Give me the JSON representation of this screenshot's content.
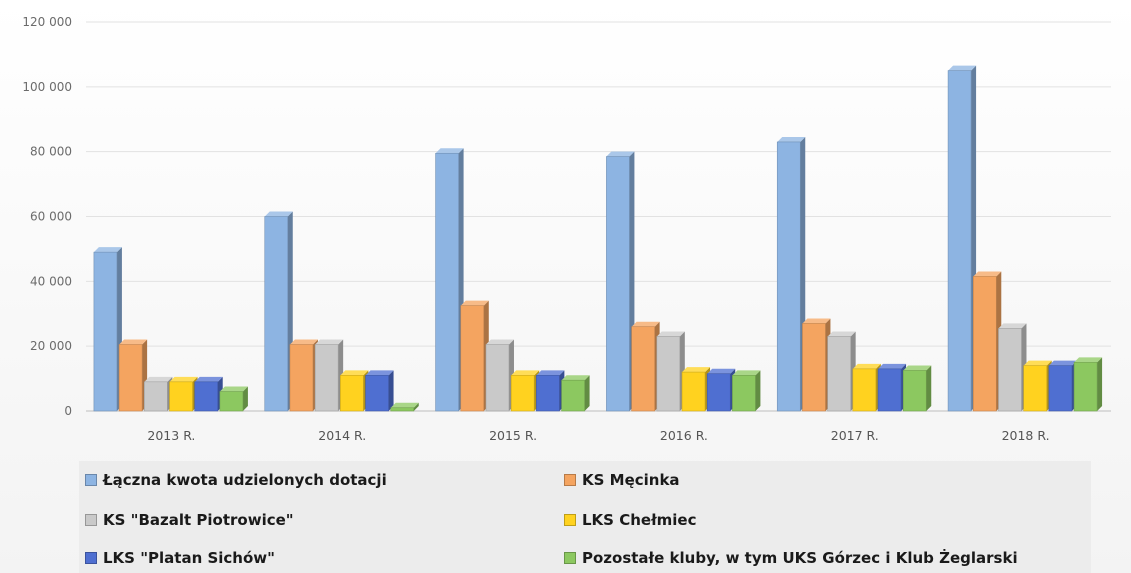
{
  "chart_data": {
    "type": "bar",
    "categories": [
      "2013 R.",
      "2014 R.",
      "2015 R.",
      "2016 R.",
      "2017 R.",
      "2018 R."
    ],
    "ylim": [
      0,
      120000
    ],
    "y_ticks": [
      "0",
      "20 000",
      "40 000",
      "60 000",
      "80 000",
      "100 000",
      "120 000"
    ],
    "series": [
      {
        "name": "Łączna kwota udzielonych dotacji",
        "color": "#8db4e2",
        "values": [
          49000,
          60000,
          79500,
          78500,
          83000,
          105000
        ]
      },
      {
        "name": "KS Męcinka",
        "color": "#f4a460",
        "values": [
          20500,
          20500,
          32500,
          26000,
          27000,
          41500
        ]
      },
      {
        "name": "KS \"Bazalt Piotrowice\"",
        "color": "#c9c9c9",
        "values": [
          9000,
          20500,
          20500,
          23000,
          23000,
          25500
        ]
      },
      {
        "name": "LKS Chełmiec",
        "color": "#ffd21f",
        "values": [
          9000,
          11000,
          11000,
          12000,
          13000,
          14000
        ]
      },
      {
        "name": "LKS \"Platan Sichów\"",
        "color": "#4f6fd1",
        "values": [
          9000,
          11000,
          11000,
          11500,
          13000,
          14000
        ]
      },
      {
        "name": "Pozostałe kluby, w tym UKS Górzec i Klub Żeglarski",
        "color": "#8cc860",
        "values": [
          6000,
          1000,
          9500,
          11000,
          12500,
          15000
        ]
      }
    ],
    "grid": true,
    "legend_position": "bottom"
  }
}
